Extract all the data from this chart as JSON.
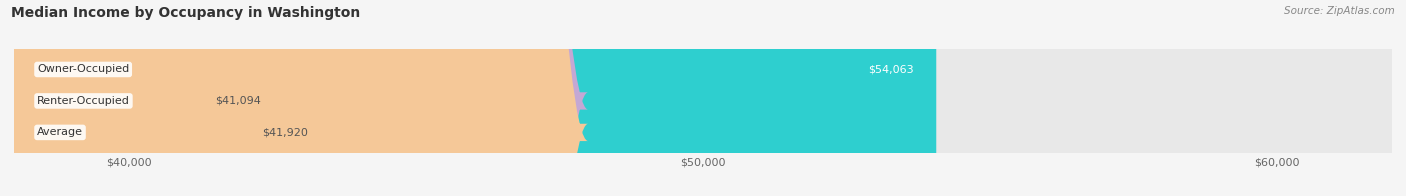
{
  "title": "Median Income by Occupancy in Washington",
  "source": "Source: ZipAtlas.com",
  "categories": [
    "Owner-Occupied",
    "Renter-Occupied",
    "Average"
  ],
  "values": [
    54063,
    41094,
    41920
  ],
  "bar_colors": [
    "#2ecfcf",
    "#c4a8d4",
    "#f5c898"
  ],
  "value_labels": [
    "$54,063",
    "$41,094",
    "$41,920"
  ],
  "xmin": 38000,
  "xmax": 62000,
  "xticks": [
    40000,
    50000,
    60000
  ],
  "xtick_labels": [
    "$40,000",
    "$50,000",
    "$60,000"
  ],
  "bar_height": 0.55,
  "background_color": "#f5f5f5",
  "bar_background_color": "#e8e8e8"
}
